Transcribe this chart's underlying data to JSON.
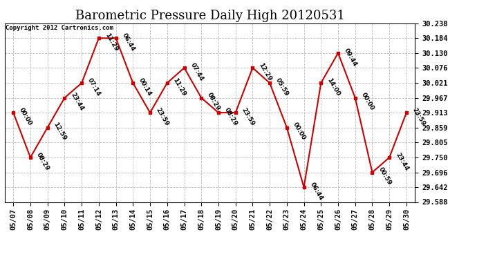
{
  "title": "Barometric Pressure Daily High 20120531",
  "copyright": "Copyright 2012 Cartronics.com",
  "x_labels": [
    "05/07",
    "05/08",
    "05/09",
    "05/10",
    "05/11",
    "05/12",
    "05/13",
    "05/14",
    "05/15",
    "05/16",
    "05/17",
    "05/18",
    "05/19",
    "05/20",
    "05/21",
    "05/22",
    "05/23",
    "05/24",
    "05/25",
    "05/26",
    "05/27",
    "05/28",
    "05/29",
    "05/30"
  ],
  "y_values": [
    29.913,
    29.75,
    29.859,
    29.967,
    30.021,
    30.184,
    30.184,
    30.021,
    29.913,
    30.021,
    30.076,
    29.967,
    29.913,
    29.913,
    30.076,
    30.021,
    29.859,
    29.642,
    30.021,
    30.13,
    29.967,
    29.696,
    29.75,
    29.913
  ],
  "time_labels": [
    "00:00",
    "08:29",
    "12:59",
    "23:44",
    "07:14",
    "11:29",
    "06:44",
    "00:14",
    "23:59",
    "11:29",
    "07:44",
    "08:29",
    "08:29",
    "23:59",
    "12:29",
    "05:59",
    "00:00",
    "06:44",
    "14:00",
    "09:44",
    "00:00",
    "00:59",
    "23:44",
    "23:59"
  ],
  "ylim_min": 29.588,
  "ylim_max": 30.238,
  "y_ticks": [
    29.588,
    29.642,
    29.696,
    29.75,
    29.805,
    29.859,
    29.913,
    29.967,
    30.021,
    30.076,
    30.13,
    30.184,
    30.238
  ],
  "line_color": "#cc0000",
  "marker_color": "#cc0000",
  "bg_color": "#ffffff",
  "grid_color": "#bbbbbb",
  "title_fontsize": 13,
  "tick_fontsize": 7.5,
  "annot_fontsize": 6.5
}
